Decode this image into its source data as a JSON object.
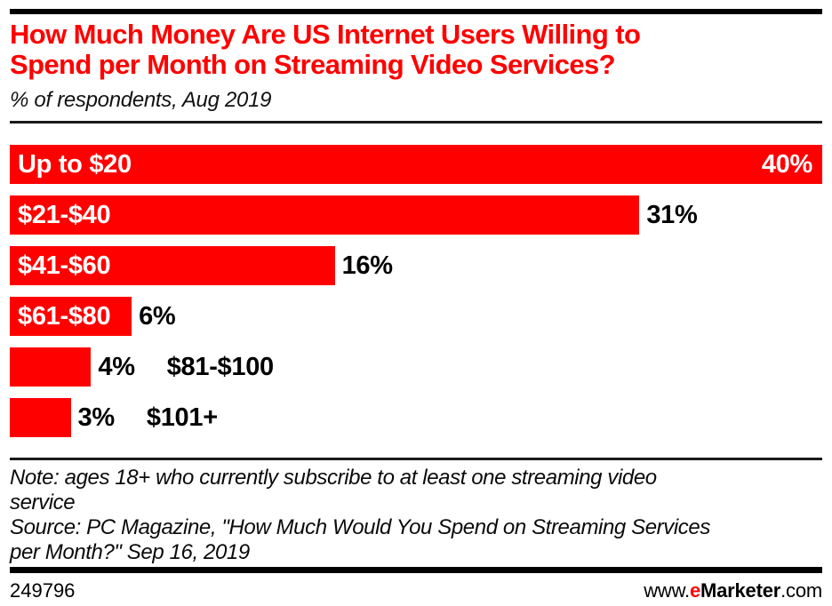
{
  "colors": {
    "accent_red": "#ff0000",
    "bar_red": "#ff0000",
    "rule_black": "#000000"
  },
  "header": {
    "title_lines": [
      "How Much Money Are US Internet Users Willing to",
      "Spend per Month on Streaming Video Services?"
    ],
    "subtitle": "% of respondents, Aug 2019"
  },
  "chart_data": {
    "type": "bar",
    "orientation": "horizontal",
    "title": "How Much Money Are US Internet Users Willing to Spend per Month on Streaming Video Services?",
    "subtitle": "% of respondents, Aug 2019",
    "categories": [
      "Up to $20",
      "$21-$40",
      "$41-$60",
      "$61-$80",
      "$81-$100",
      "$101+"
    ],
    "values": [
      40,
      31,
      16,
      6,
      4,
      3
    ],
    "value_labels": [
      "40%",
      "31%",
      "16%",
      "6%",
      "4%",
      "3%"
    ],
    "unit": "%",
    "xlim": [
      0,
      40
    ],
    "bar_color": "#ff0000",
    "grid": false,
    "legend": false,
    "category_label_placement": [
      "inside",
      "inside",
      "inside",
      "inside",
      "outside",
      "outside"
    ],
    "value_label_placement": [
      "inside-right",
      "outside",
      "outside",
      "outside",
      "outside",
      "outside"
    ]
  },
  "footnotes": {
    "note_lines": [
      "Note: ages 18+ who currently subscribe to at least one streaming video",
      "service"
    ],
    "source_lines": [
      "Source: PC Magazine, \"How Much Would You Spend on Streaming Services",
      "per Month?\" Sep 16, 2019"
    ]
  },
  "footer": {
    "chart_id": "249796",
    "site_www": "www.",
    "site_e": "e",
    "site_brand": "Marketer",
    "site_com": ".com"
  }
}
